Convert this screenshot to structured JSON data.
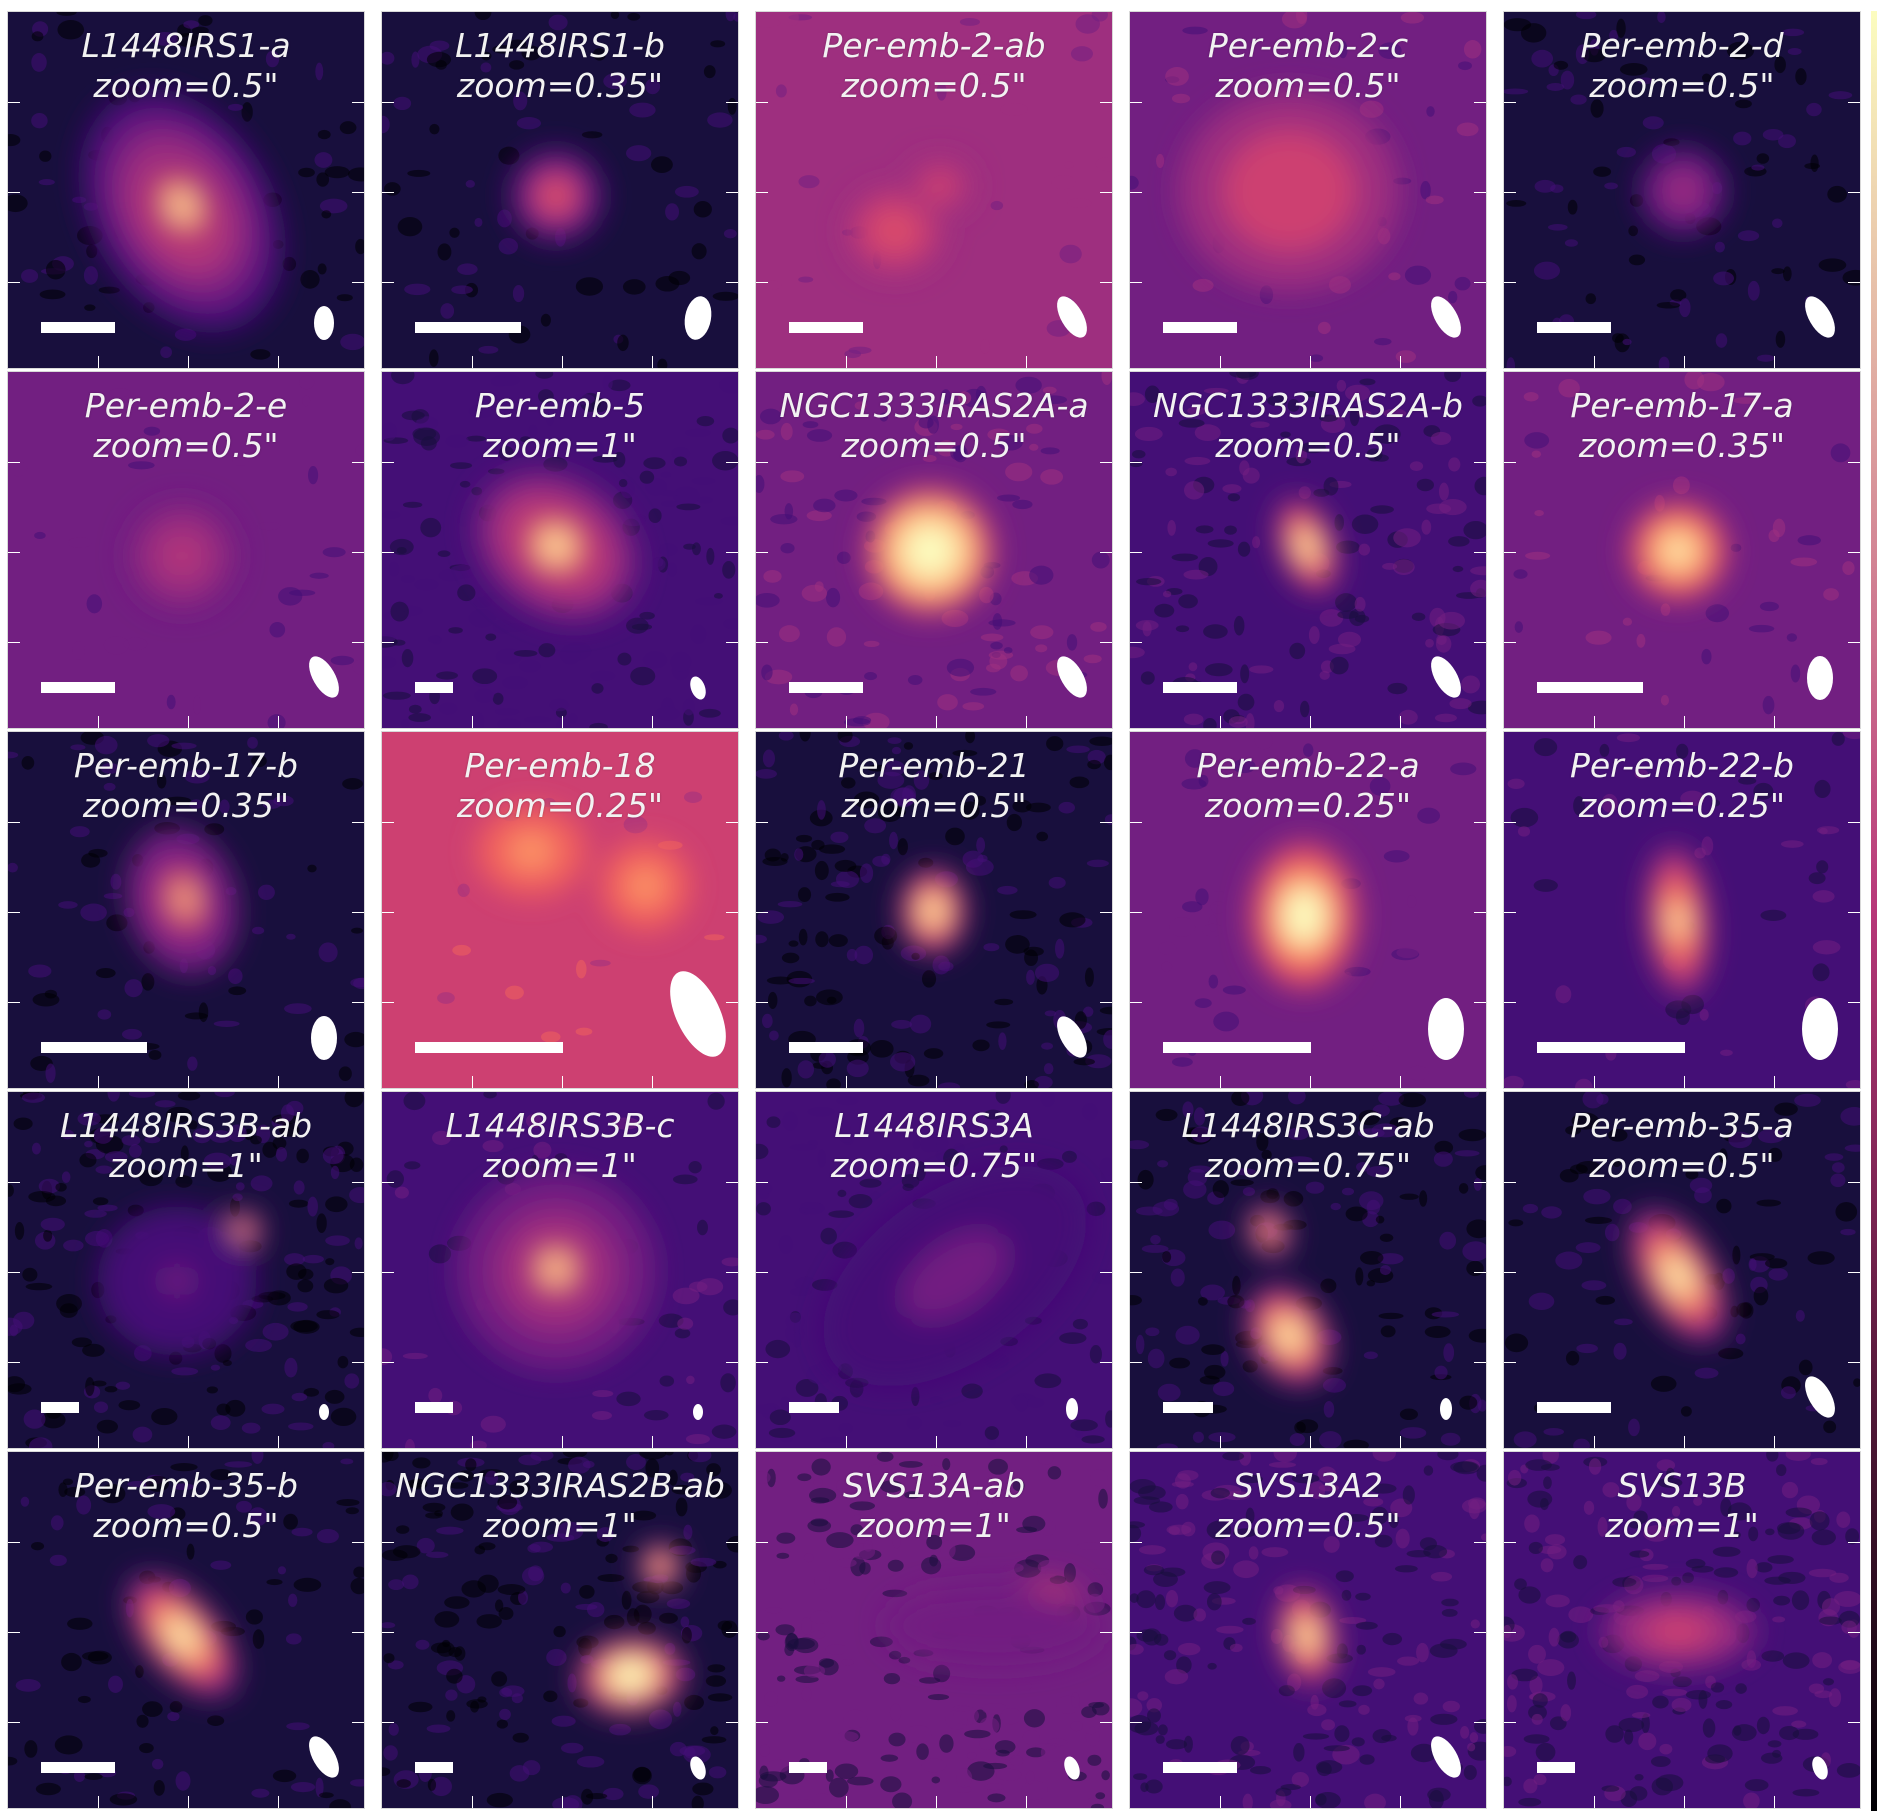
{
  "figure": {
    "colormap": [
      "#000004",
      "#180f3d",
      "#440f76",
      "#721f81",
      "#9e2f7f",
      "#cd4071",
      "#f1605d",
      "#fd9668",
      "#feca8d",
      "#fcfdbf"
    ],
    "scale_bar_color": "#ffffff",
    "beam_color": "#ffffff",
    "label_color": "#f2f2f2",
    "panels": [
      {
        "name": "L1448IRS1-a",
        "zoom": "zoom=0.5\""
      },
      {
        "name": "L1448IRS1-b",
        "zoom": "zoom=0.35\""
      },
      {
        "name": "Per-emb-2-ab",
        "zoom": "zoom=0.5\""
      },
      {
        "name": "Per-emb-2-c",
        "zoom": "zoom=0.5\""
      },
      {
        "name": "Per-emb-2-d",
        "zoom": "zoom=0.5\""
      },
      {
        "name": "Per-emb-2-e",
        "zoom": "zoom=0.5\""
      },
      {
        "name": "Per-emb-5",
        "zoom": "zoom=1\""
      },
      {
        "name": "NGC1333IRAS2A-a",
        "zoom": "zoom=0.5\""
      },
      {
        "name": "NGC1333IRAS2A-b",
        "zoom": "zoom=0.5\""
      },
      {
        "name": "Per-emb-17-a",
        "zoom": "zoom=0.35\""
      },
      {
        "name": "Per-emb-17-b",
        "zoom": "zoom=0.35\""
      },
      {
        "name": "Per-emb-18",
        "zoom": "zoom=0.25\""
      },
      {
        "name": "Per-emb-21",
        "zoom": "zoom=0.5\""
      },
      {
        "name": "Per-emb-22-a",
        "zoom": "zoom=0.25\""
      },
      {
        "name": "Per-emb-22-b",
        "zoom": "zoom=0.25\""
      },
      {
        "name": "L1448IRS3B-ab",
        "zoom": "zoom=1\""
      },
      {
        "name": "L1448IRS3B-c",
        "zoom": "zoom=1\""
      },
      {
        "name": "L1448IRS3A",
        "zoom": "zoom=0.75\""
      },
      {
        "name": "L1448IRS3C-ab",
        "zoom": "zoom=0.75\""
      },
      {
        "name": "Per-emb-35-a",
        "zoom": "zoom=0.5\""
      },
      {
        "name": "Per-emb-35-b",
        "zoom": "zoom=0.5\""
      },
      {
        "name": "NGC1333IRAS2B-ab",
        "zoom": "zoom=1\""
      },
      {
        "name": "SVS13A-ab",
        "zoom": "zoom=1\""
      },
      {
        "name": "SVS13A2",
        "zoom": "zoom=0.5\""
      },
      {
        "name": "SVS13B",
        "zoom": "zoom=1\""
      }
    ]
  }
}
